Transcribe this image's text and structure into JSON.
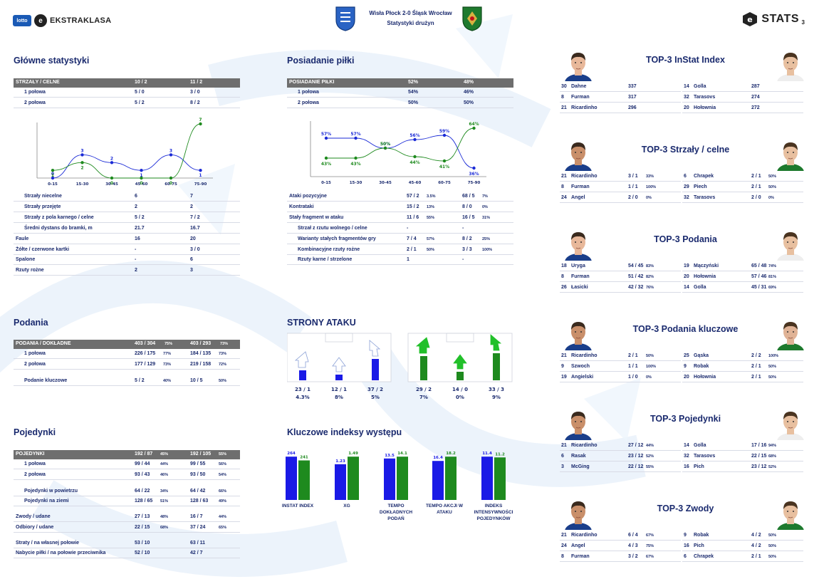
{
  "header": {
    "league": "EKSTRAKLASA",
    "lotto": "lotto",
    "match": "Wisła Płock 2-0 Śląsk Wrocław",
    "subtitle": "Statystyki drużyn",
    "stats_brand": "STATS",
    "page_number": "3"
  },
  "main_stats": {
    "title": "Główne statystyki",
    "shots_header": [
      "STRZAŁY / CELNE",
      "10 / 2",
      "11 / 2"
    ],
    "shots_rows": [
      [
        "1 połowa",
        "5 / 0",
        "3 / 0"
      ],
      [
        "2 połowa",
        "5 / 2",
        "8 / 2"
      ]
    ],
    "rows": [
      [
        "Strzały niecelne",
        "6",
        "7"
      ],
      [
        "Strzały przejęte",
        "2",
        "2"
      ],
      [
        "Strzały z pola karnego / celne",
        "5 / 2",
        "7 / 2"
      ],
      [
        "Średni dystans do bramki, m",
        "21.7",
        "16.7"
      ],
      [
        "Faule",
        "16",
        "20"
      ],
      [
        "Żółte / czerwone kartki",
        "-",
        "3 / 0"
      ],
      [
        "Spalone",
        "-",
        "6"
      ],
      [
        "Rzuty rożne",
        "2",
        "3"
      ]
    ]
  },
  "possession": {
    "title": "Posiadanie piłki",
    "header": [
      "POSIADANIE PIŁKI",
      "52%",
      "48%"
    ],
    "rows": [
      [
        "1 połowa",
        "54%",
        "46%"
      ],
      [
        "2 połowa",
        "50%",
        "50%"
      ]
    ],
    "attack_rows": [
      [
        "Ataki pozycyjne",
        "57 / 2",
        "3.5%",
        "68 / 5",
        "7%"
      ],
      [
        "Kontrataki",
        "15 / 2",
        "13%",
        "8 / 0",
        "0%"
      ],
      [
        "Stały fragment w ataku",
        "11 / 6",
        "55%",
        "16 / 5",
        "31%"
      ],
      [
        "Strzał z rzutu wolnego / celne",
        "-",
        "",
        "-",
        ""
      ],
      [
        "Warianty stałych fragmentów gry",
        "7 / 4",
        "57%",
        "8 / 2",
        "25%"
      ],
      [
        "Kombinacyjne rzuty rożne",
        "2 / 1",
        "50%",
        "3 / 3",
        "100%"
      ],
      [
        "Rzuty karne / strzelone",
        "1",
        "",
        "-",
        ""
      ]
    ]
  },
  "chart_data": [
    {
      "type": "line",
      "categories": [
        "0-15",
        "15-30",
        "30-45",
        "45-60",
        "60-75",
        "75-90"
      ],
      "series": [
        {
          "values": [
            0,
            3,
            2,
            1,
            3,
            1
          ],
          "color": "#1a2ad6"
        },
        {
          "values": [
            1,
            2,
            0,
            0,
            0,
            7
          ],
          "color": "#1e8a1e"
        }
      ]
    },
    {
      "type": "line",
      "categories": [
        "0-15",
        "15-30",
        "30-45",
        "45-60",
        "60-75",
        "75-90"
      ],
      "series": [
        {
          "values": [
            "57%",
            "57%",
            "50%",
            "56%",
            "59%",
            "36%"
          ],
          "color": "#1a2ad6"
        },
        {
          "values": [
            "43%",
            "43%",
            "50%",
            "44%",
            "41%",
            "64%"
          ],
          "color": "#1e8a1e"
        }
      ]
    },
    {
      "type": "bar",
      "categories": [
        "INSTAT INDEX",
        "XG",
        "TEMPO DOKŁADNYCH PODAŃ",
        "TEMPO AKCJI W ATAKU",
        "INDEKS INTENSYWNOŚCI POJEDYNKÓW"
      ],
      "series": [
        {
          "values": [
            264,
            1.23,
            13.5,
            16.4,
            11.4
          ],
          "color": "#1a1ae6"
        },
        {
          "values": [
            241,
            1.49,
            14.1,
            18.2,
            11.2
          ],
          "color": "#1e8a1e"
        }
      ]
    }
  ],
  "passes": {
    "title": "Podania",
    "header": [
      "PODANIA / DOKŁADNE",
      "403 / 304",
      "75%",
      "403 / 293",
      "73%"
    ],
    "rows": [
      [
        "1 połowa",
        "226 / 175",
        "77%",
        "184 / 135",
        "73%"
      ],
      [
        "2 połowa",
        "177 / 129",
        "73%",
        "219 / 158",
        "72%"
      ],
      [
        "Podanie kluczowe",
        "5 / 2",
        "40%",
        "10 / 5",
        "50%"
      ]
    ]
  },
  "duels": {
    "title": "Pojedynki",
    "header": [
      "POJEDYNKI",
      "192 / 87",
      "45%",
      "192 / 105",
      "55%"
    ],
    "rows": [
      [
        "1 połowa",
        "99 / 44",
        "44%",
        "99 / 55",
        "56%"
      ],
      [
        "2 połowa",
        "93 / 43",
        "46%",
        "93 / 50",
        "54%"
      ],
      [
        "Pojedynki w powietrzu",
        "64 / 22",
        "34%",
        "64 / 42",
        "66%"
      ],
      [
        "Pojedynki na ziemi",
        "128 / 65",
        "51%",
        "128 / 63",
        "49%"
      ],
      [
        "Zwody / udane",
        "27 / 13",
        "48%",
        "16 / 7",
        "44%"
      ],
      [
        "Odbiory / udane",
        "22 / 15",
        "68%",
        "37 / 24",
        "65%"
      ],
      [
        "Straty / na własnej połowie",
        "53 / 10",
        "",
        "63 / 11",
        ""
      ],
      [
        "Nabycie piłki / na połowie przeciwnika",
        "52 / 10",
        "",
        "42 / 7",
        ""
      ]
    ]
  },
  "attack_sides": {
    "title": "STRONY ATAKU",
    "left": [
      {
        "v": "23 / 1",
        "p": "4.3%",
        "bar": 0.35
      },
      {
        "v": "12 / 1",
        "p": "8%",
        "bar": 0.2
      },
      {
        "v": "37 / 2",
        "p": "5%",
        "bar": 0.75
      }
    ],
    "right": [
      {
        "v": "29 / 2",
        "p": "7%",
        "bar": 0.85
      },
      {
        "v": "14 / 0",
        "p": "0%",
        "bar": 0.3
      },
      {
        "v": "33 / 3",
        "p": "9%",
        "bar": 0.95
      }
    ]
  },
  "key_indexes": {
    "title": "Kluczowe indeksy występu",
    "labels": [
      "INSTAT INDEX",
      "XG",
      "TEMPO DOKŁADNYCH PODAŃ",
      "TEMPO AKCJI W ATAKU",
      "INDEKS INTENSYWNOŚCI POJEDYNKÓW"
    ],
    "a": [
      "264",
      "1.23",
      "13.5",
      "16.4",
      "11.4"
    ],
    "b": [
      "241",
      "1.49",
      "14.1",
      "18.2",
      "11.2"
    ]
  },
  "tops": [
    {
      "title": "TOP-3 InStat Index",
      "left": [
        [
          "30",
          "Dahne",
          "337",
          ""
        ],
        [
          "8",
          "Furman",
          "317",
          ""
        ],
        [
          "21",
          "Ricardinho",
          "296",
          ""
        ]
      ],
      "right": [
        [
          "14",
          "Golla",
          "287",
          ""
        ],
        [
          "32",
          "Tarasovs",
          "274",
          ""
        ],
        [
          "20",
          "Hołownia",
          "272",
          ""
        ]
      ]
    },
    {
      "title": "TOP-3 Strzały / celne",
      "left": [
        [
          "21",
          "Ricardinho",
          "3 / 1",
          "33%"
        ],
        [
          "8",
          "Furman",
          "1 / 1",
          "100%"
        ],
        [
          "24",
          "Angel",
          "2 / 0",
          "0%"
        ]
      ],
      "right": [
        [
          "6",
          "Chrapek",
          "2 / 1",
          "50%"
        ],
        [
          "29",
          "Piech",
          "2 / 1",
          "50%"
        ],
        [
          "32",
          "Tarasovs",
          "2 / 0",
          "0%"
        ]
      ]
    },
    {
      "title": "TOP-3 Podania",
      "left": [
        [
          "18",
          "Uryga",
          "54 / 45",
          "83%"
        ],
        [
          "8",
          "Furman",
          "51 / 42",
          "82%"
        ],
        [
          "26",
          "Łasicki",
          "42 / 32",
          "76%"
        ]
      ],
      "right": [
        [
          "19",
          "Mączyński",
          "65 / 48",
          "74%"
        ],
        [
          "20",
          "Hołownia",
          "57 / 46",
          "81%"
        ],
        [
          "14",
          "Golla",
          "45 / 31",
          "69%"
        ]
      ]
    },
    {
      "title": "TOP-3 Podania kluczowe",
      "left": [
        [
          "21",
          "Ricardinho",
          "2 / 1",
          "50%"
        ],
        [
          "9",
          "Szwoch",
          "1 / 1",
          "100%"
        ],
        [
          "19",
          "Angielski",
          "1 / 0",
          "0%"
        ]
      ],
      "right": [
        [
          "25",
          "Gąska",
          "2 / 2",
          "100%"
        ],
        [
          "9",
          "Robak",
          "2 / 1",
          "50%"
        ],
        [
          "20",
          "Hołownia",
          "2 / 1",
          "50%"
        ]
      ]
    },
    {
      "title": "TOP-3 Pojedynki",
      "left": [
        [
          "21",
          "Ricardinho",
          "27 / 12",
          "44%"
        ],
        [
          "6",
          "Rasak",
          "23 / 12",
          "52%"
        ],
        [
          "3",
          "McGing",
          "22 / 12",
          "55%"
        ]
      ],
      "right": [
        [
          "14",
          "Golla",
          "17 / 16",
          "94%"
        ],
        [
          "32",
          "Tarasovs",
          "22 / 15",
          "68%"
        ],
        [
          "16",
          "Pich",
          "23 / 12",
          "52%"
        ]
      ]
    },
    {
      "title": "TOP-3 Zwody",
      "left": [
        [
          "21",
          "Ricardinho",
          "6 / 4",
          "67%"
        ],
        [
          "24",
          "Angel",
          "4 / 3",
          "75%"
        ],
        [
          "8",
          "Furman",
          "3 / 2",
          "67%"
        ]
      ],
      "right": [
        [
          "9",
          "Robak",
          "4 / 2",
          "50%"
        ],
        [
          "16",
          "Pich",
          "4 / 2",
          "50%"
        ],
        [
          "6",
          "Chrapek",
          "2 / 1",
          "50%"
        ]
      ]
    }
  ]
}
